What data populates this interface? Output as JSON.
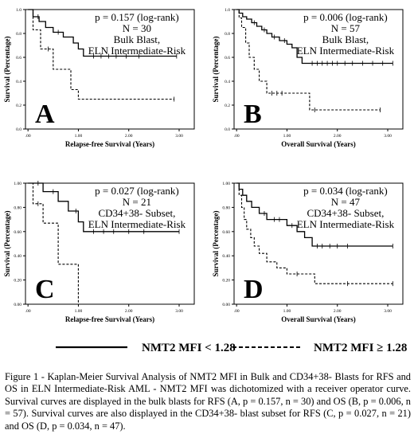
{
  "chart_data": [
    {
      "type": "line",
      "panel_label": "A",
      "xlabel": "Relapse-free Survival (Years)",
      "ylabel": "Survival (Percentage)",
      "xlim": [
        -0.05,
        3.3
      ],
      "ylim": [
        0,
        1.0
      ],
      "x_ticks": [
        ".00",
        "1.00",
        "2.00",
        "3.00"
      ],
      "y_ticks": [
        "0.0",
        "0.2",
        "0.4",
        "0.6",
        "0.8",
        "1.0"
      ],
      "annotation": [
        "p = 0.157 (log-rank)",
        "N = 30",
        "Bulk Blast,",
        "ELN Intermediate-Risk"
      ],
      "series": [
        {
          "style": "solid",
          "points": [
            [
              0,
              1.0
            ],
            [
              0.1,
              0.94
            ],
            [
              0.22,
              0.9
            ],
            [
              0.35,
              0.85
            ],
            [
              0.5,
              0.81
            ],
            [
              0.7,
              0.77
            ],
            [
              0.9,
              0.72
            ],
            [
              1.0,
              0.67
            ],
            [
              1.1,
              0.61
            ],
            [
              2.95,
              0.61
            ]
          ],
          "censored": [
            [
              0.2,
              0.94
            ],
            [
              0.6,
              0.81
            ],
            [
              1.3,
              0.61
            ],
            [
              1.45,
              0.61
            ],
            [
              1.6,
              0.61
            ],
            [
              1.75,
              0.61
            ],
            [
              1.95,
              0.61
            ],
            [
              2.2,
              0.61
            ],
            [
              2.95,
              0.61
            ]
          ]
        },
        {
          "style": "dashed",
          "points": [
            [
              0,
              1.0
            ],
            [
              0.1,
              0.83
            ],
            [
              0.25,
              0.67
            ],
            [
              0.5,
              0.5
            ],
            [
              0.85,
              0.33
            ],
            [
              1.0,
              0.25
            ],
            [
              2.9,
              0.25
            ]
          ],
          "censored": [
            [
              0.4,
              0.67
            ],
            [
              2.9,
              0.25
            ]
          ]
        }
      ]
    },
    {
      "type": "line",
      "panel_label": "B",
      "xlabel": "Overall Survival (Years)",
      "ylabel": "Survival (Percentage)",
      "xlim": [
        -0.05,
        3.3
      ],
      "ylim": [
        0,
        1.0
      ],
      "x_ticks": [
        ".00",
        "1.00",
        "2.00",
        "3.00"
      ],
      "y_ticks": [
        "0.0",
        "0.2",
        "0.4",
        "0.6",
        "0.8",
        "1.0"
      ],
      "annotation": [
        "p = 0.006 (log-rank)",
        "N = 57",
        "Bulk Blast,",
        "ELN Intermediate-Risk"
      ],
      "series": [
        {
          "style": "solid",
          "points": [
            [
              0,
              1.0
            ],
            [
              0.05,
              0.97
            ],
            [
              0.12,
              0.94
            ],
            [
              0.2,
              0.92
            ],
            [
              0.3,
              0.89
            ],
            [
              0.4,
              0.86
            ],
            [
              0.5,
              0.83
            ],
            [
              0.6,
              0.8
            ],
            [
              0.7,
              0.77
            ],
            [
              0.85,
              0.74
            ],
            [
              1.0,
              0.71
            ],
            [
              1.1,
              0.68
            ],
            [
              1.2,
              0.6
            ],
            [
              1.3,
              0.55
            ],
            [
              3.1,
              0.55
            ]
          ],
          "censored": [
            [
              0.35,
              0.89
            ],
            [
              0.55,
              0.83
            ],
            [
              0.75,
              0.77
            ],
            [
              0.95,
              0.74
            ],
            [
              1.5,
              0.55
            ],
            [
              1.6,
              0.55
            ],
            [
              1.7,
              0.55
            ],
            [
              1.8,
              0.55
            ],
            [
              1.9,
              0.55
            ],
            [
              2.0,
              0.55
            ],
            [
              2.15,
              0.55
            ],
            [
              2.3,
              0.55
            ],
            [
              2.5,
              0.55
            ],
            [
              2.7,
              0.55
            ],
            [
              2.9,
              0.55
            ],
            [
              3.1,
              0.55
            ]
          ]
        },
        {
          "style": "dashed",
          "points": [
            [
              0,
              1.0
            ],
            [
              0.05,
              0.93
            ],
            [
              0.1,
              0.85
            ],
            [
              0.18,
              0.72
            ],
            [
              0.25,
              0.6
            ],
            [
              0.35,
              0.5
            ],
            [
              0.45,
              0.4
            ],
            [
              0.6,
              0.3
            ],
            [
              1.0,
              0.3
            ],
            [
              1.45,
              0.16
            ],
            [
              2.85,
              0.16
            ]
          ],
          "censored": [
            [
              0.7,
              0.3
            ],
            [
              0.8,
              0.3
            ],
            [
              0.9,
              0.3
            ],
            [
              1.55,
              0.16
            ],
            [
              2.85,
              0.16
            ]
          ]
        }
      ]
    },
    {
      "type": "line",
      "panel_label": "C",
      "xlabel": "Relapse-free Survival (Years)",
      "ylabel": "Survival (Percentage)",
      "xlim": [
        -0.05,
        3.3
      ],
      "ylim": [
        0,
        1.0
      ],
      "x_ticks": [
        ".00",
        "1.00",
        "2.00",
        "3.00"
      ],
      "y_ticks": [
        "0.00",
        "0.20",
        "0.40",
        "0.60",
        "0.80",
        "1.00"
      ],
      "annotation": [
        "p = 0.027 (log-rank)",
        "N = 21",
        "CD34+38- Subset,",
        "ELN Intermediate-Risk"
      ],
      "series": [
        {
          "style": "solid",
          "points": [
            [
              0,
              1.0
            ],
            [
              0.3,
              0.93
            ],
            [
              0.6,
              0.85
            ],
            [
              0.8,
              0.77
            ],
            [
              1.0,
              0.68
            ],
            [
              1.1,
              0.6
            ],
            [
              3.0,
              0.6
            ]
          ],
          "censored": [
            [
              0.2,
              1.0
            ],
            [
              0.5,
              0.93
            ],
            [
              0.95,
              0.77
            ],
            [
              1.3,
              0.6
            ],
            [
              1.5,
              0.6
            ],
            [
              1.7,
              0.6
            ],
            [
              2.0,
              0.6
            ],
            [
              2.3,
              0.6
            ],
            [
              3.0,
              0.6
            ]
          ]
        },
        {
          "style": "dashed",
          "points": [
            [
              0,
              1.0
            ],
            [
              0.1,
              0.83
            ],
            [
              0.3,
              0.67
            ],
            [
              0.6,
              0.33
            ],
            [
              0.9,
              0.33
            ],
            [
              1.0,
              0
            ]
          ],
          "censored": [
            [
              0.2,
              0.83
            ]
          ]
        }
      ]
    },
    {
      "type": "line",
      "panel_label": "D",
      "xlabel": "Overall Survival (Years)",
      "ylabel": "Survival (Percentage)",
      "xlim": [
        -0.05,
        3.3
      ],
      "ylim": [
        0,
        1.0
      ],
      "x_ticks": [
        ".00",
        "1.00",
        "2.00",
        "3.00"
      ],
      "y_ticks": [
        "0.00",
        "0.20",
        "0.40",
        "0.60",
        "0.80",
        "1.00"
      ],
      "annotation": [
        "p = 0.034 (log-rank)",
        "N = 47",
        "CD34+38- Subset,",
        "ELN Intermediate-Risk"
      ],
      "series": [
        {
          "style": "solid",
          "points": [
            [
              0,
              1.0
            ],
            [
              0.05,
              0.95
            ],
            [
              0.12,
              0.9
            ],
            [
              0.2,
              0.85
            ],
            [
              0.3,
              0.8
            ],
            [
              0.45,
              0.75
            ],
            [
              0.6,
              0.7
            ],
            [
              1.0,
              0.65
            ],
            [
              1.2,
              0.6
            ],
            [
              1.35,
              0.55
            ],
            [
              1.5,
              0.48
            ],
            [
              3.1,
              0.48
            ]
          ],
          "censored": [
            [
              0.55,
              0.75
            ],
            [
              0.75,
              0.7
            ],
            [
              0.85,
              0.7
            ],
            [
              1.1,
              0.65
            ],
            [
              1.6,
              0.48
            ],
            [
              1.7,
              0.48
            ],
            [
              1.85,
              0.48
            ],
            [
              2.0,
              0.48
            ],
            [
              2.2,
              0.48
            ],
            [
              3.1,
              0.48
            ]
          ]
        },
        {
          "style": "dashed",
          "points": [
            [
              0,
              1.0
            ],
            [
              0.05,
              0.9
            ],
            [
              0.1,
              0.8
            ],
            [
              0.15,
              0.7
            ],
            [
              0.2,
              0.62
            ],
            [
              0.28,
              0.55
            ],
            [
              0.35,
              0.48
            ],
            [
              0.45,
              0.42
            ],
            [
              0.6,
              0.35
            ],
            [
              0.8,
              0.3
            ],
            [
              1.0,
              0.25
            ],
            [
              1.55,
              0.17
            ],
            [
              3.1,
              0.17
            ]
          ],
          "censored": [
            [
              1.2,
              0.25
            ],
            [
              2.2,
              0.17
            ],
            [
              3.1,
              0.17
            ]
          ]
        }
      ]
    }
  ],
  "legend": {
    "solid_label": "NMT2 MFI < 1.28",
    "dashed_label": "NMT2 MFI ≥ 1.28"
  },
  "caption": "Figure 1 - Kaplan-Meier Survival Analysis of NMT2 MFI in Bulk and CD34+38- Blasts for RFS and OS in ELN Intermediate-Risk AML - NMT2 MFI was dichotomized with a receiver operator curve. Survival curves are displayed in the bulk blasts for RFS (A, p = 0.157, n = 30) and OS (B, p = 0.006, n = 57). Survival curves are also displayed in the CD34+38- blast subset for RFS (C, p = 0.027, n = 21) and OS (D, p = 0.034, n = 47)."
}
